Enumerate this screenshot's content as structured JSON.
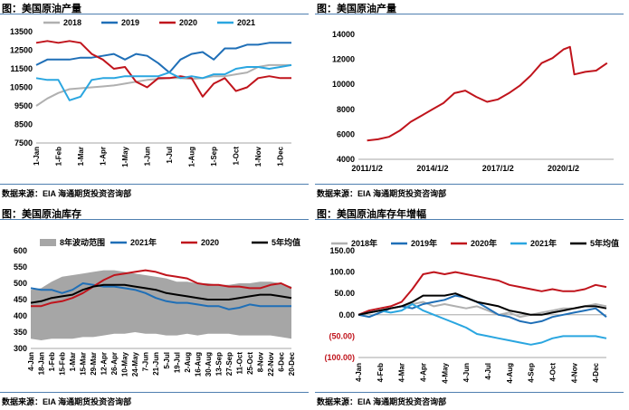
{
  "panels": [
    {
      "title": "图：美国原油产量",
      "source": "数据来源：EIA   海通期货投资咨询部"
    },
    {
      "title": "图：美国原油产量",
      "source": "数据来源：EIA   海通期货投资咨询部"
    },
    {
      "title": "图：美国原油库存",
      "source": "数据来源：EIA   海通期货投资咨询部"
    },
    {
      "title": "图：美国原油库存年增幅",
      "source": "数据来源：EIA   海通期货投资咨询部"
    }
  ],
  "chart_data": [
    {
      "type": "line",
      "title": "图：美国原油产量",
      "ylim": [
        7500,
        13500
      ],
      "yticks": [
        "7500",
        "8500",
        "9500",
        "10500",
        "11500",
        "12500",
        "13500"
      ],
      "xticks": [
        "1-Jan",
        "1-Feb",
        "1-Mar",
        "1-Apr",
        "1-May",
        "1-Jun",
        "1-Jul",
        "1-Aug",
        "1-Sep",
        "1-Oct",
        "1-Nov",
        "1-Dec"
      ],
      "legend_position": "top",
      "x": [
        0,
        0.5,
        1,
        1.5,
        2,
        2.5,
        3,
        3.5,
        4,
        4.5,
        5,
        5.5,
        6,
        6.5,
        7,
        7.5,
        8,
        8.5,
        9,
        9.5,
        10,
        10.5,
        11,
        11.5
      ],
      "series": [
        {
          "name": "2018",
          "color": "#b0b0b0",
          "values": [
            9500,
            9900,
            10200,
            10400,
            10450,
            10500,
            10550,
            10600,
            10700,
            10800,
            10900,
            10950,
            11000,
            11000,
            10950,
            11000,
            11100,
            11100,
            11200,
            11300,
            11600,
            11700,
            11700,
            11700
          ]
        },
        {
          "name": "2019",
          "color": "#1f6fb7",
          "values": [
            11700,
            12000,
            12000,
            12000,
            12100,
            12100,
            12200,
            12300,
            12000,
            12300,
            12200,
            11800,
            11300,
            12000,
            12300,
            12400,
            12000,
            12600,
            12600,
            12800,
            12800,
            12900,
            12900,
            12900
          ]
        },
        {
          "name": "2020",
          "color": "#c0141c",
          "values": [
            12900,
            13000,
            12900,
            13000,
            12900,
            12300,
            12000,
            11500,
            11600,
            10800,
            10500,
            11000,
            11000,
            11100,
            11000,
            10000,
            10700,
            11000,
            10300,
            10500,
            11000,
            11100,
            11000,
            11000
          ]
        },
        {
          "name": "2021",
          "color": "#2aa6e0",
          "values": [
            11000,
            10900,
            10900,
            9800,
            10000,
            10900,
            11000,
            11000,
            11100,
            11100,
            11100,
            11100,
            11300,
            11000,
            11100,
            11000,
            11200,
            11200,
            11500,
            11600,
            11600,
            11500,
            11600,
            11700
          ]
        }
      ]
    },
    {
      "type": "line",
      "title": "图：美国原油产量",
      "ylim": [
        4000,
        14000
      ],
      "yticks": [
        "4000",
        "6000",
        "8000",
        "10000",
        "12000",
        "14000"
      ],
      "xticks": [
        "2011/1/2",
        "2014/1/2",
        "2017/1/2",
        "2020/1/2"
      ],
      "x": [
        2011,
        2011.5,
        2012,
        2012.5,
        2013,
        2013.5,
        2014,
        2014.5,
        2015,
        2015.5,
        2016,
        2016.5,
        2017,
        2017.5,
        2018,
        2018.5,
        2019,
        2019.5,
        2020,
        2020.3,
        2020.5,
        2021,
        2021.5,
        2022
      ],
      "series": [
        {
          "name": "",
          "color": "#c0141c",
          "values": [
            5500,
            5600,
            5800,
            6300,
            7000,
            7500,
            8000,
            8500,
            9300,
            9500,
            9000,
            8600,
            8800,
            9300,
            9900,
            10700,
            11700,
            12100,
            12800,
            13000,
            10800,
            11000,
            11100,
            11700
          ]
        }
      ]
    },
    {
      "type": "area",
      "title": "图：美国原油库存",
      "ylim": [
        300,
        600
      ],
      "yticks": [
        "300",
        "350",
        "400",
        "450",
        "500",
        "550",
        "600"
      ],
      "xticks": [
        "4-Jan",
        "18-Jan",
        "1-Feb",
        "15-Feb",
        "1-Mar",
        "15-Mar",
        "29-Mar",
        "12-Apr",
        "26-Apr",
        "10-May",
        "24-May",
        "7-Jun",
        "21-Jun",
        "5-Jul",
        "19-Jul",
        "2-Aug",
        "16-Aug",
        "30-Aug",
        "13-Sep",
        "27-Sep",
        "11-Oct",
        "25-Oct",
        "8-Nov",
        "22-Nov",
        "6-Dec",
        "20-Dec"
      ],
      "legend_position": "top",
      "x": [
        0,
        1,
        2,
        3,
        4,
        5,
        6,
        7,
        8,
        9,
        10,
        11,
        12,
        13,
        14,
        15,
        16,
        17,
        18,
        19,
        20,
        21,
        22,
        23,
        24,
        25
      ],
      "range": {
        "name": "8年波动范围",
        "color": "#a6a6a6",
        "upper": [
          480,
          485,
          505,
          520,
          525,
          530,
          535,
          540,
          540,
          535,
          530,
          525,
          520,
          515,
          505,
          505,
          500,
          500,
          495,
          495,
          500,
          500,
          505,
          505,
          500,
          490
        ],
        "lower": [
          330,
          325,
          330,
          330,
          330,
          335,
          335,
          340,
          345,
          345,
          350,
          345,
          345,
          340,
          340,
          345,
          340,
          345,
          345,
          345,
          340,
          340,
          340,
          340,
          335,
          330
        ]
      },
      "series": [
        {
          "name": "2021年",
          "color": "#1f6fb7",
          "values": [
            485,
            480,
            480,
            470,
            480,
            500,
            495,
            490,
            490,
            485,
            480,
            470,
            455,
            445,
            440,
            440,
            435,
            430,
            430,
            420,
            425,
            435,
            430,
            430,
            430,
            430
          ]
        },
        {
          "name": "2020",
          "color": "#c0141c",
          "values": [
            430,
            430,
            440,
            445,
            455,
            470,
            490,
            510,
            525,
            530,
            535,
            540,
            535,
            525,
            520,
            515,
            500,
            495,
            495,
            490,
            490,
            485,
            485,
            495,
            500,
            485
          ]
        },
        {
          "name": "5年均值",
          "color": "#000000",
          "values": [
            440,
            445,
            455,
            460,
            465,
            480,
            490,
            495,
            495,
            495,
            490,
            485,
            480,
            470,
            465,
            460,
            455,
            450,
            450,
            450,
            455,
            460,
            465,
            465,
            460,
            455
          ]
        }
      ]
    },
    {
      "type": "line",
      "title": "图：美国原油库存年增幅",
      "ylim": [
        -100,
        150
      ],
      "yticks": [
        "150.00",
        "100.00",
        "50.00",
        "0.00",
        "(50.00)",
        "(100.00)"
      ],
      "xticks": [
        "4-Jan",
        "4-Feb",
        "4-Mar",
        "4-Apr",
        "4-May",
        "4-Jun",
        "4-Jul",
        "4-Aug",
        "4-Sep",
        "4-Oct",
        "4-Nov",
        "4-Dec"
      ],
      "legend_position": "top",
      "x": [
        0,
        0.5,
        1,
        1.5,
        2,
        2.5,
        3,
        3.5,
        4,
        4.5,
        5,
        5.5,
        6,
        6.5,
        7,
        7.5,
        8,
        8.5,
        9,
        9.5,
        10,
        10.5,
        11,
        11.5
      ],
      "series": [
        {
          "name": "2018年",
          "color": "#b0b0b0",
          "values": [
            0,
            5,
            10,
            15,
            20,
            25,
            30,
            20,
            25,
            20,
            15,
            20,
            10,
            0,
            5,
            -5,
            0,
            5,
            10,
            15,
            15,
            20,
            25,
            20
          ]
        },
        {
          "name": "2019年",
          "color": "#1f6fb7",
          "values": [
            0,
            -5,
            5,
            15,
            20,
            15,
            25,
            30,
            35,
            45,
            40,
            30,
            15,
            0,
            -5,
            -15,
            -20,
            -15,
            -5,
            0,
            5,
            10,
            15,
            -5
          ]
        },
        {
          "name": "2020年",
          "color": "#c0141c",
          "values": [
            0,
            10,
            15,
            20,
            30,
            60,
            95,
            100,
            95,
            100,
            95,
            90,
            85,
            80,
            70,
            65,
            60,
            55,
            60,
            55,
            55,
            60,
            70,
            65
          ]
        },
        {
          "name": "2021年",
          "color": "#2aa6e0",
          "values": [
            0,
            5,
            10,
            5,
            10,
            25,
            10,
            0,
            -10,
            -20,
            -30,
            -45,
            -50,
            -55,
            -60,
            -65,
            -70,
            -65,
            -55,
            -50,
            -50,
            -50,
            -50,
            -55
          ]
        },
        {
          "name": "5年均值",
          "color": "#000000",
          "values": [
            0,
            5,
            10,
            15,
            20,
            30,
            45,
            45,
            45,
            50,
            40,
            30,
            25,
            20,
            10,
            5,
            0,
            0,
            5,
            10,
            15,
            20,
            20,
            15
          ]
        }
      ]
    }
  ]
}
